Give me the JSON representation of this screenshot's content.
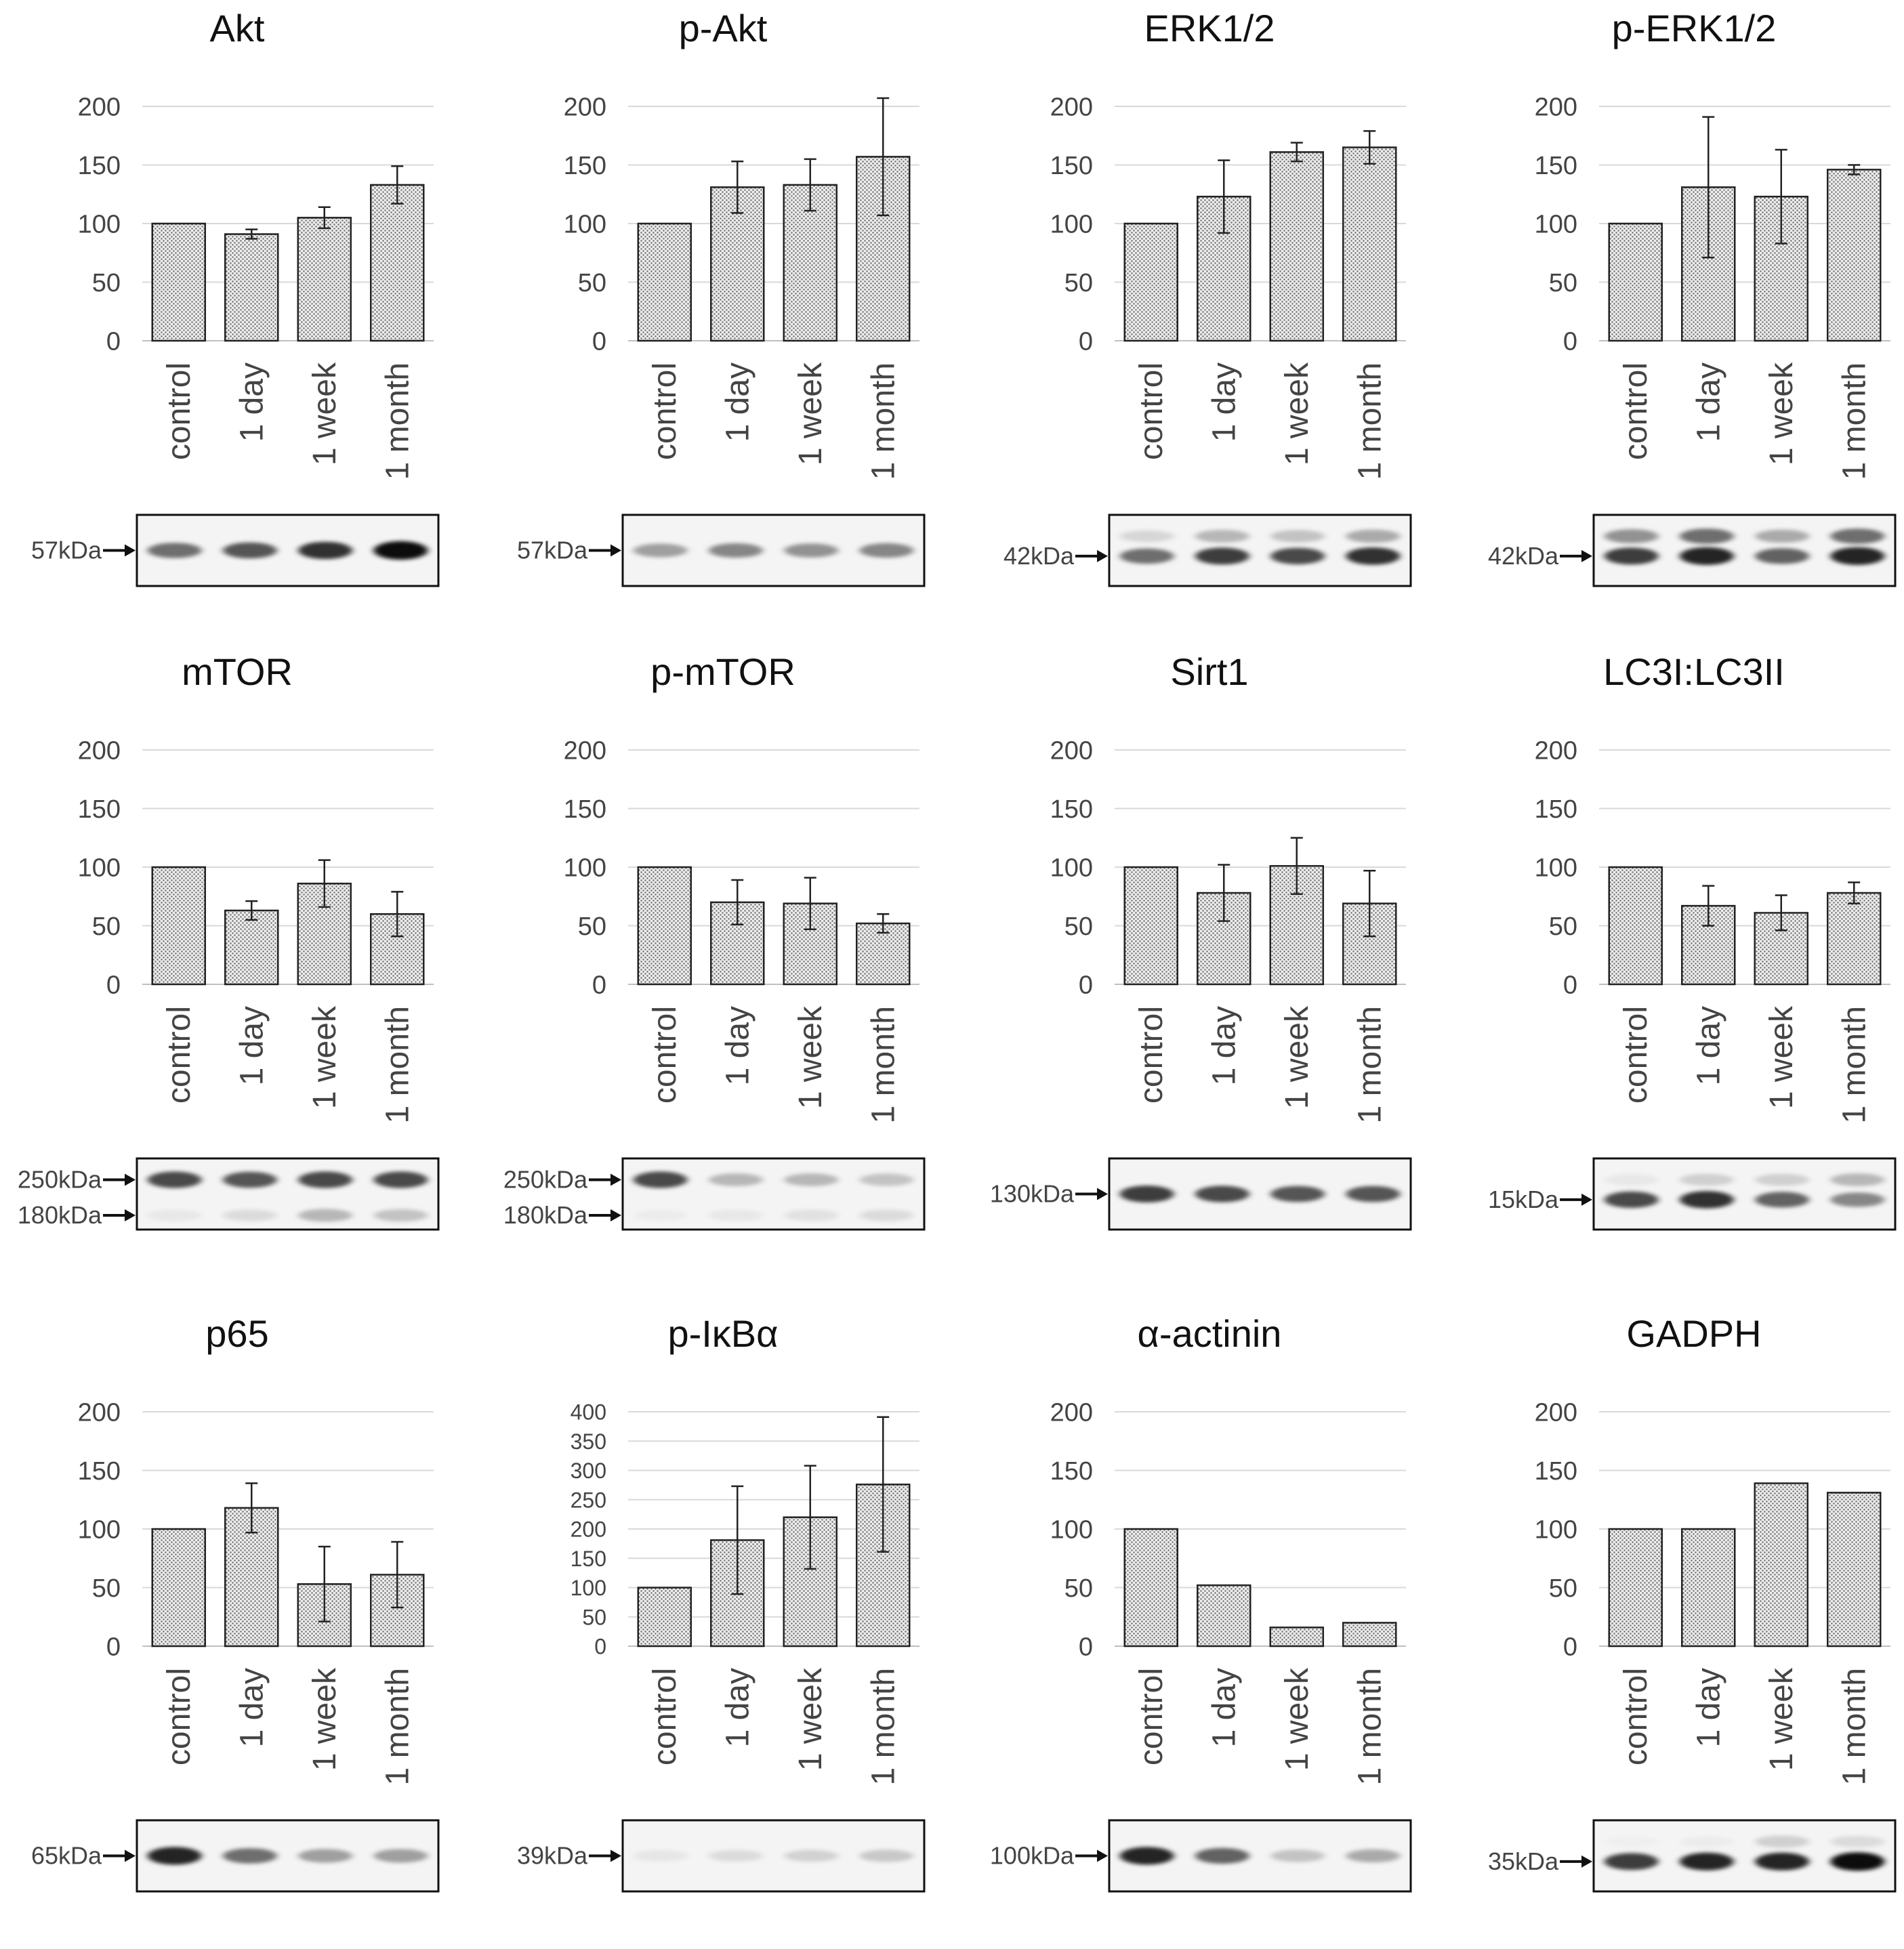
{
  "chart_data": [
    {
      "type": "bar",
      "title": "Akt",
      "categories": [
        "control",
        "1 day",
        "1 week",
        "1 month"
      ],
      "values": [
        100,
        91,
        105,
        133
      ],
      "errors": [
        0,
        4,
        9,
        16
      ],
      "ylim": [
        0,
        200
      ],
      "yticks": [
        0,
        50,
        100,
        150,
        200
      ],
      "blot": {
        "markers": [
          {
            "label": "57kDa"
          }
        ],
        "bands": [
          {
            "intensities": [
              0.55,
              0.65,
              0.8,
              0.95
            ]
          }
        ]
      }
    },
    {
      "type": "bar",
      "title": "p-Akt",
      "categories": [
        "control",
        "1 day",
        "1 week",
        "1 month"
      ],
      "values": [
        100,
        131,
        133,
        157
      ],
      "errors": [
        0,
        22,
        22,
        50
      ],
      "ylim": [
        0,
        200
      ],
      "yticks": [
        0,
        50,
        100,
        150,
        200
      ],
      "blot": {
        "markers": [
          {
            "label": "57kDa"
          }
        ],
        "bands": [
          {
            "intensities": [
              0.35,
              0.45,
              0.4,
              0.45
            ]
          }
        ]
      }
    },
    {
      "type": "bar",
      "title": "ERK1/2",
      "categories": [
        "control",
        "1 day",
        "1 week",
        "1 month"
      ],
      "values": [
        100,
        123,
        161,
        165
      ],
      "errors": [
        0,
        31,
        8,
        14
      ],
      "ylim": [
        0,
        200
      ],
      "yticks": [
        0,
        50,
        100,
        150,
        200
      ],
      "blot": {
        "markers": [
          {
            "label": "42kDa"
          }
        ],
        "bands": [
          {
            "intensities": [
              0.55,
              0.75,
              0.7,
              0.8
            ]
          },
          {
            "intensities": [
              0.12,
              0.25,
              0.2,
              0.3
            ]
          }
        ]
      }
    },
    {
      "type": "bar",
      "title": "p-ERK1/2",
      "categories": [
        "control",
        "1 day",
        "1 week",
        "1 month"
      ],
      "values": [
        100,
        131,
        123,
        146
      ],
      "errors": [
        0,
        60,
        40,
        4
      ],
      "ylim": [
        0,
        200
      ],
      "yticks": [
        0,
        50,
        100,
        150,
        200
      ],
      "blot": {
        "markers": [
          {
            "label": "42kDa"
          }
        ],
        "bands": [
          {
            "intensities": [
              0.75,
              0.85,
              0.6,
              0.85
            ]
          },
          {
            "intensities": [
              0.4,
              0.55,
              0.3,
              0.55
            ]
          }
        ]
      }
    },
    {
      "type": "bar",
      "title": "mTOR",
      "categories": [
        "control",
        "1 day",
        "1 week",
        "1 month"
      ],
      "values": [
        100,
        63,
        86,
        60
      ],
      "errors": [
        0,
        8,
        20,
        19
      ],
      "ylim": [
        0,
        200
      ],
      "yticks": [
        0,
        50,
        100,
        150,
        200
      ],
      "blot": {
        "markers": [
          {
            "label": "250kDa"
          },
          {
            "label": "180kDa"
          }
        ],
        "bands": [
          {
            "intensities": [
              0.7,
              0.65,
              0.7,
              0.7
            ]
          },
          {
            "intensities": [
              0.05,
              0.1,
              0.25,
              0.2
            ]
          }
        ]
      }
    },
    {
      "type": "bar",
      "title": "p-mTOR",
      "categories": [
        "control",
        "1 day",
        "1 week",
        "1 month"
      ],
      "values": [
        100,
        70,
        69,
        52
      ],
      "errors": [
        0,
        19,
        22,
        8
      ],
      "ylim": [
        0,
        200
      ],
      "yticks": [
        0,
        50,
        100,
        150,
        200
      ],
      "blot": {
        "markers": [
          {
            "label": "250kDa"
          },
          {
            "label": "180kDa"
          }
        ],
        "bands": [
          {
            "intensities": [
              0.7,
              0.25,
              0.25,
              0.2
            ]
          },
          {
            "intensities": [
              0.03,
              0.05,
              0.08,
              0.1
            ]
          }
        ]
      }
    },
    {
      "type": "bar",
      "title": "Sirt1",
      "categories": [
        "control",
        "1 day",
        "1 week",
        "1 month"
      ],
      "values": [
        100,
        78,
        101,
        69
      ],
      "errors": [
        0,
        24,
        24,
        28
      ],
      "ylim": [
        0,
        200
      ],
      "yticks": [
        0,
        50,
        100,
        150,
        200
      ],
      "blot": {
        "markers": [
          {
            "label": "130kDa"
          }
        ],
        "bands": [
          {
            "intensities": [
              0.75,
              0.7,
              0.65,
              0.65
            ]
          }
        ]
      }
    },
    {
      "type": "bar",
      "title": "LC3I:LC3II",
      "categories": [
        "control",
        "1 day",
        "1 week",
        "1 month"
      ],
      "values": [
        100,
        67,
        61,
        78
      ],
      "errors": [
        0,
        17,
        15,
        9
      ],
      "ylim": [
        0,
        200
      ],
      "yticks": [
        0,
        50,
        100,
        150,
        200
      ],
      "blot": {
        "markers": [
          {
            "label": "15kDa"
          }
        ],
        "bands": [
          {
            "intensities": [
              0.7,
              0.8,
              0.6,
              0.45
            ]
          },
          {
            "intensities": [
              0.05,
              0.15,
              0.15,
              0.25
            ]
          }
        ]
      }
    },
    {
      "type": "bar",
      "title": "p65",
      "categories": [
        "control",
        "1 day",
        "1 week",
        "1 month"
      ],
      "values": [
        100,
        118,
        53,
        61
      ],
      "errors": [
        0,
        21,
        32,
        28
      ],
      "ylim": [
        0,
        200
      ],
      "yticks": [
        0,
        50,
        100,
        150,
        200
      ],
      "blot": {
        "markers": [
          {
            "label": "65kDa"
          }
        ],
        "bands": [
          {
            "intensities": [
              0.85,
              0.55,
              0.35,
              0.35
            ]
          }
        ]
      }
    },
    {
      "type": "bar",
      "title": "p-IκBα",
      "categories": [
        "control",
        "1 day",
        "1 week",
        "1 month"
      ],
      "values": [
        100,
        181,
        220,
        276
      ],
      "errors": [
        0,
        92,
        88,
        115
      ],
      "ylim": [
        0,
        400
      ],
      "yticks": [
        0,
        50,
        100,
        150,
        200,
        250,
        300,
        350,
        400
      ],
      "blot": {
        "markers": [
          {
            "label": "39kDa"
          }
        ],
        "bands": [
          {
            "intensities": [
              0.06,
              0.1,
              0.14,
              0.18
            ]
          }
        ]
      }
    },
    {
      "type": "bar",
      "title": "α-actinin",
      "categories": [
        "control",
        "1 day",
        "1 week",
        "1 month"
      ],
      "values": [
        100,
        52,
        16,
        20
      ],
      "errors": [
        0,
        0,
        0,
        0
      ],
      "ylim": [
        0,
        200
      ],
      "yticks": [
        0,
        50,
        100,
        150,
        200
      ],
      "blot": {
        "markers": [
          {
            "label": "100kDa"
          }
        ],
        "bands": [
          {
            "intensities": [
              0.85,
              0.6,
              0.2,
              0.3
            ]
          }
        ]
      }
    },
    {
      "type": "bar",
      "title": "GADPH",
      "categories": [
        "control",
        "1 day",
        "1 week",
        "1 month"
      ],
      "values": [
        100,
        100,
        139,
        131
      ],
      "errors": [
        0,
        0,
        0,
        0
      ],
      "ylim": [
        0,
        200
      ],
      "yticks": [
        0,
        50,
        100,
        150,
        200
      ],
      "blot": {
        "markers": [
          {
            "label": "35kDa"
          }
        ],
        "bands": [
          {
            "intensities": [
              0.75,
              0.85,
              0.85,
              0.95
            ]
          },
          {
            "intensities": [
              0.02,
              0.03,
              0.15,
              0.1
            ]
          }
        ]
      }
    }
  ]
}
